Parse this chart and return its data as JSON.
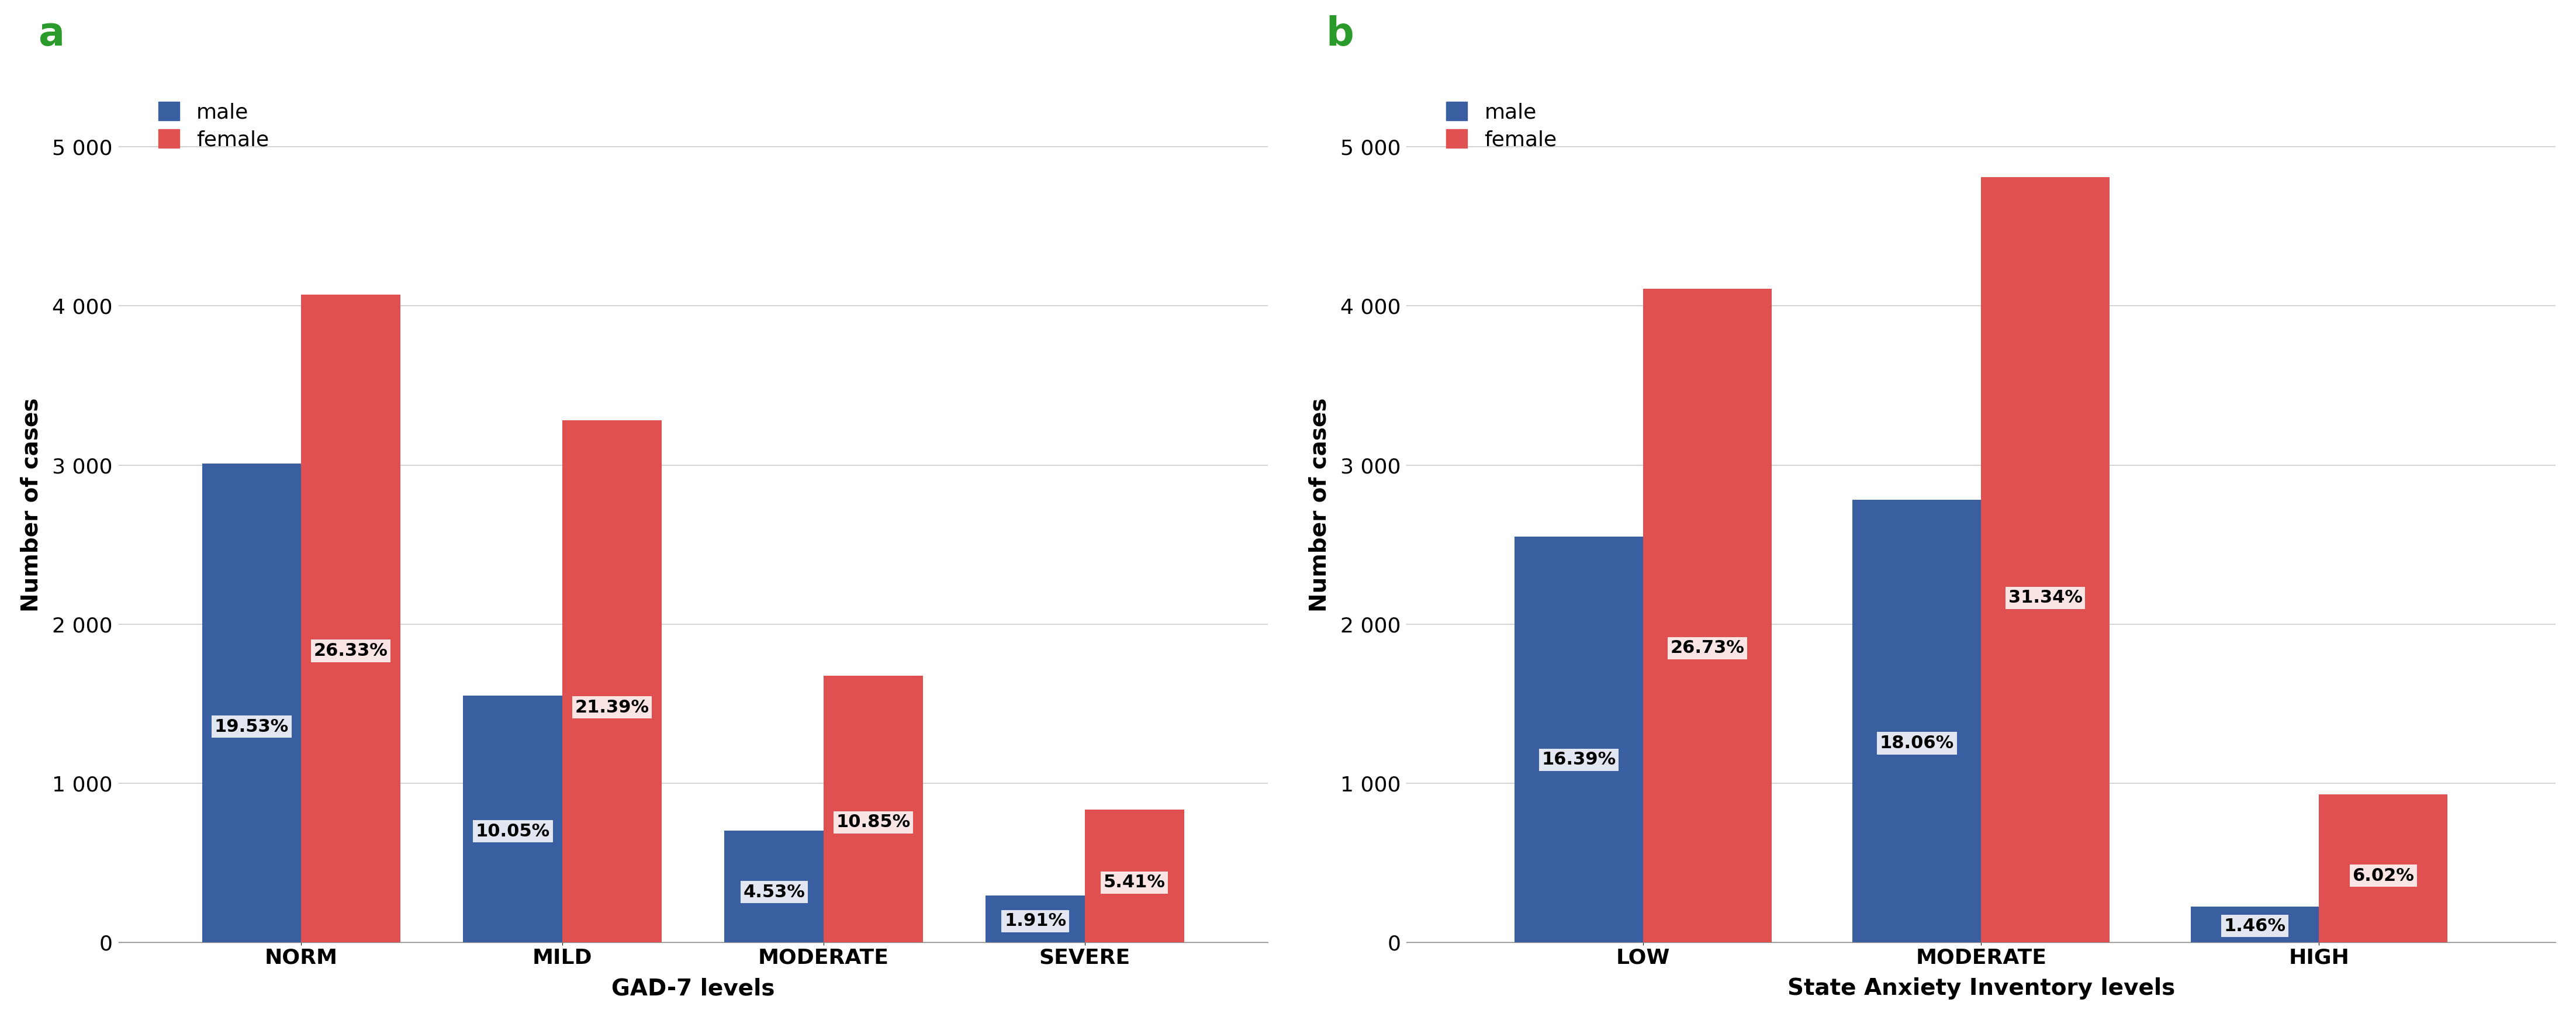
{
  "panel_a": {
    "title": "a",
    "categories": [
      "NORM",
      "MILD",
      "MODERATE",
      "SEVERE"
    ],
    "male_values": [
      3010,
      1550,
      700,
      295
    ],
    "female_values": [
      4070,
      3280,
      1675,
      835
    ],
    "male_pcts": [
      "19.53%",
      "10.05%",
      "4.53%",
      "1.91%"
    ],
    "female_pcts": [
      "26.33%",
      "21.39%",
      "10.85%",
      "5.41%"
    ],
    "xlabel": "GAD-7 levels",
    "ylabel": "Number of cases"
  },
  "panel_b": {
    "title": "b",
    "categories": [
      "LOW",
      "MODERATE",
      "HIGH"
    ],
    "male_values": [
      2550,
      2780,
      225
    ],
    "female_values": [
      4110,
      4810,
      930
    ],
    "male_pcts": [
      "16.39%",
      "18.06%",
      "1.46%"
    ],
    "female_pcts": [
      "26.73%",
      "31.34%",
      "6.02%"
    ],
    "xlabel": "State Anxiety Inventory levels",
    "ylabel": "Number of cases"
  },
  "male_color": "#3a5fa0",
  "female_color": "#e05050",
  "bar_width": 0.38,
  "ylim": [
    0,
    5500
  ],
  "yticks": [
    0,
    1000,
    2000,
    3000,
    4000,
    5000
  ],
  "ytick_labels": [
    "0",
    "1 000",
    "2 000",
    "3 000",
    "4 000",
    "5 000"
  ],
  "background_color": "#ffffff",
  "grid_color": "#cccccc",
  "title_color": "#2a9a2a",
  "title_fontsize": 48,
  "label_fontsize": 28,
  "tick_fontsize": 26,
  "pct_fontsize": 22,
  "legend_fontsize": 26,
  "axis_label_fontsize": 28
}
